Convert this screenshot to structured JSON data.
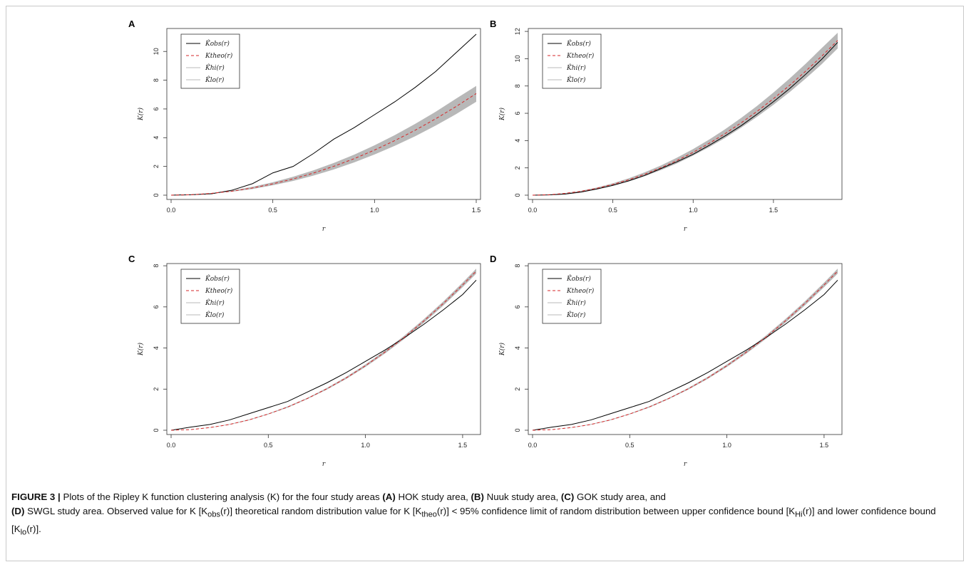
{
  "caption": {
    "figure_label": "FIGURE 3 |",
    "part1": " Plots of the Ripley K function clustering analysis (K) for the four study areas ",
    "a": "(A)",
    "a_text": " HOK study area, ",
    "b": "(B)",
    "b_text": " Nuuk study area, ",
    "c": "(C)",
    "c_text": " GOK study area, and",
    "d": "(D)",
    "d_text": " SWGL study area. Observed value for K [K",
    "obs": "obs",
    "t2": "(r)] theoretical random distribution value for K [K",
    "theo": "theo",
    "t3": "(r)] < 95% confidence limit of random distribution between upper confidence bound [K",
    "hi": "Hi",
    "t4": "(r)] and lower confidence bound [K",
    "lo": "lo",
    "t5": "(r)]."
  },
  "colors": {
    "observed": "#000000",
    "theoretical": "#d62728",
    "envelope": "#b8b8b8"
  },
  "chart_data": [
    {
      "panel": "A",
      "type": "line",
      "xlabel": "r",
      "ylabel": "K(r)",
      "xlim": [
        0,
        1.5
      ],
      "ylim": [
        0,
        11.3
      ],
      "xticks": [
        "0.0",
        "0.5",
        "1.0",
        "1.5"
      ],
      "yticks": [
        "0",
        "2",
        "4",
        "6",
        "8",
        "10"
      ],
      "legend": [
        "K̂obs(r)",
        "Ktheo(r)",
        "K̂hi(r)",
        "K̂lo(r)"
      ],
      "legend_position": "top-left",
      "x": [
        0,
        0.1,
        0.2,
        0.3,
        0.4,
        0.5,
        0.6,
        0.7,
        0.8,
        0.9,
        1.0,
        1.1,
        1.2,
        1.3,
        1.4,
        1.5
      ],
      "observed": [
        0,
        0.03,
        0.1,
        0.35,
        0.8,
        1.55,
        2.0,
        2.9,
        3.9,
        4.7,
        5.6,
        6.5,
        7.5,
        8.6,
        9.9,
        11.2
      ],
      "theoretical": [
        0,
        0.03,
        0.13,
        0.28,
        0.5,
        0.79,
        1.13,
        1.54,
        2.01,
        2.54,
        3.14,
        3.8,
        4.52,
        5.31,
        6.16,
        7.07
      ],
      "hi": [
        0,
        0.04,
        0.15,
        0.33,
        0.58,
        0.9,
        1.28,
        1.73,
        2.24,
        2.82,
        3.47,
        4.18,
        4.96,
        5.8,
        6.71,
        7.6
      ],
      "lo": [
        0,
        0.02,
        0.11,
        0.24,
        0.43,
        0.69,
        0.99,
        1.36,
        1.79,
        2.28,
        2.83,
        3.44,
        4.1,
        4.84,
        5.63,
        6.5
      ]
    },
    {
      "panel": "B",
      "type": "line",
      "xlabel": "r",
      "ylabel": "K(r)",
      "xlim": [
        0,
        1.9
      ],
      "ylim": [
        0,
        11.9
      ],
      "xticks": [
        "0.0",
        "0.5",
        "1.0",
        "1.5"
      ],
      "yticks": [
        "0",
        "2",
        "4",
        "6",
        "8",
        "10",
        "12"
      ],
      "legend": [
        "K̂obs(r)",
        "Ktheo(r)",
        "K̂hi(r)",
        "K̂lo(r)"
      ],
      "legend_position": "top-left",
      "x": [
        0,
        0.1,
        0.2,
        0.3,
        0.4,
        0.5,
        0.6,
        0.7,
        0.8,
        0.9,
        1.0,
        1.1,
        1.2,
        1.3,
        1.4,
        1.5,
        1.6,
        1.7,
        1.8,
        1.9
      ],
      "observed": [
        0,
        0.02,
        0.08,
        0.22,
        0.45,
        0.72,
        1.05,
        1.45,
        1.95,
        2.45,
        3.0,
        3.65,
        4.35,
        5.1,
        5.95,
        6.85,
        7.8,
        8.85,
        9.95,
        11.2
      ],
      "theoretical": [
        0,
        0.03,
        0.13,
        0.28,
        0.5,
        0.79,
        1.13,
        1.54,
        2.01,
        2.54,
        3.14,
        3.8,
        4.52,
        5.31,
        6.16,
        7.07,
        8.04,
        9.08,
        10.18,
        11.34
      ],
      "hi": [
        0,
        0.04,
        0.15,
        0.32,
        0.56,
        0.87,
        1.24,
        1.68,
        2.18,
        2.75,
        3.38,
        4.08,
        4.84,
        5.67,
        6.56,
        7.52,
        8.54,
        9.62,
        10.77,
        11.9
      ],
      "lo": [
        0,
        0.02,
        0.1,
        0.24,
        0.44,
        0.71,
        1.02,
        1.4,
        1.84,
        2.33,
        2.9,
        3.52,
        4.2,
        4.95,
        5.76,
        6.62,
        7.54,
        8.54,
        9.59,
        10.75
      ]
    },
    {
      "panel": "C",
      "type": "line",
      "xlabel": "r",
      "ylabel": "K(r)",
      "xlim": [
        0,
        1.57
      ],
      "ylim": [
        0,
        7.9
      ],
      "xticks": [
        "0.0",
        "0.5",
        "1.0",
        "1.5"
      ],
      "yticks": [
        "0",
        "2",
        "4",
        "6",
        "8"
      ],
      "legend": [
        "K̂obs(r)",
        "Ktheo(r)",
        "K̂hi(r)",
        "K̂lo(r)"
      ],
      "legend_position": "top-left",
      "x": [
        0,
        0.1,
        0.2,
        0.3,
        0.4,
        0.5,
        0.6,
        0.7,
        0.8,
        0.9,
        1.0,
        1.1,
        1.2,
        1.3,
        1.4,
        1.5,
        1.57
      ],
      "observed": [
        0,
        0.15,
        0.28,
        0.5,
        0.8,
        1.1,
        1.4,
        1.85,
        2.3,
        2.8,
        3.35,
        3.9,
        4.5,
        5.15,
        5.85,
        6.6,
        7.3
      ],
      "theoretical": [
        0,
        0.03,
        0.13,
        0.28,
        0.5,
        0.79,
        1.13,
        1.54,
        2.01,
        2.54,
        3.14,
        3.8,
        4.52,
        5.31,
        6.16,
        7.07,
        7.74
      ],
      "hi": [
        0,
        0.04,
        0.14,
        0.3,
        0.52,
        0.81,
        1.16,
        1.57,
        2.05,
        2.59,
        3.2,
        3.87,
        4.6,
        5.4,
        6.26,
        7.18,
        7.86
      ],
      "lo": [
        0,
        0.03,
        0.12,
        0.27,
        0.48,
        0.77,
        1.1,
        1.51,
        1.97,
        2.49,
        3.08,
        3.73,
        4.44,
        5.22,
        6.06,
        6.96,
        7.62
      ]
    },
    {
      "panel": "D",
      "type": "line",
      "xlabel": "r",
      "ylabel": "K(r)",
      "xlim": [
        0,
        1.57
      ],
      "ylim": [
        0,
        7.9
      ],
      "xticks": [
        "0.0",
        "0.5",
        "1.0",
        "1.5"
      ],
      "yticks": [
        "0",
        "2",
        "4",
        "6",
        "8"
      ],
      "legend": [
        "K̂obs(r)",
        "Ktheo(r)",
        "K̂hi(r)",
        "K̂lo(r)"
      ],
      "legend_position": "top-left",
      "x": [
        0,
        0.1,
        0.2,
        0.3,
        0.4,
        0.5,
        0.6,
        0.7,
        0.8,
        0.9,
        1.0,
        1.1,
        1.2,
        1.3,
        1.4,
        1.5,
        1.57
      ],
      "observed": [
        0,
        0.15,
        0.28,
        0.5,
        0.8,
        1.1,
        1.4,
        1.85,
        2.3,
        2.8,
        3.35,
        3.9,
        4.5,
        5.15,
        5.85,
        6.6,
        7.3
      ],
      "theoretical": [
        0,
        0.03,
        0.13,
        0.28,
        0.5,
        0.79,
        1.13,
        1.54,
        2.01,
        2.54,
        3.14,
        3.8,
        4.52,
        5.31,
        6.16,
        7.07,
        7.74
      ],
      "hi": [
        0,
        0.04,
        0.14,
        0.3,
        0.52,
        0.81,
        1.16,
        1.57,
        2.05,
        2.59,
        3.2,
        3.87,
        4.6,
        5.4,
        6.26,
        7.18,
        7.86
      ],
      "lo": [
        0,
        0.03,
        0.12,
        0.27,
        0.48,
        0.77,
        1.1,
        1.51,
        1.97,
        2.49,
        3.08,
        3.73,
        4.44,
        5.22,
        6.06,
        6.96,
        7.62
      ]
    }
  ]
}
